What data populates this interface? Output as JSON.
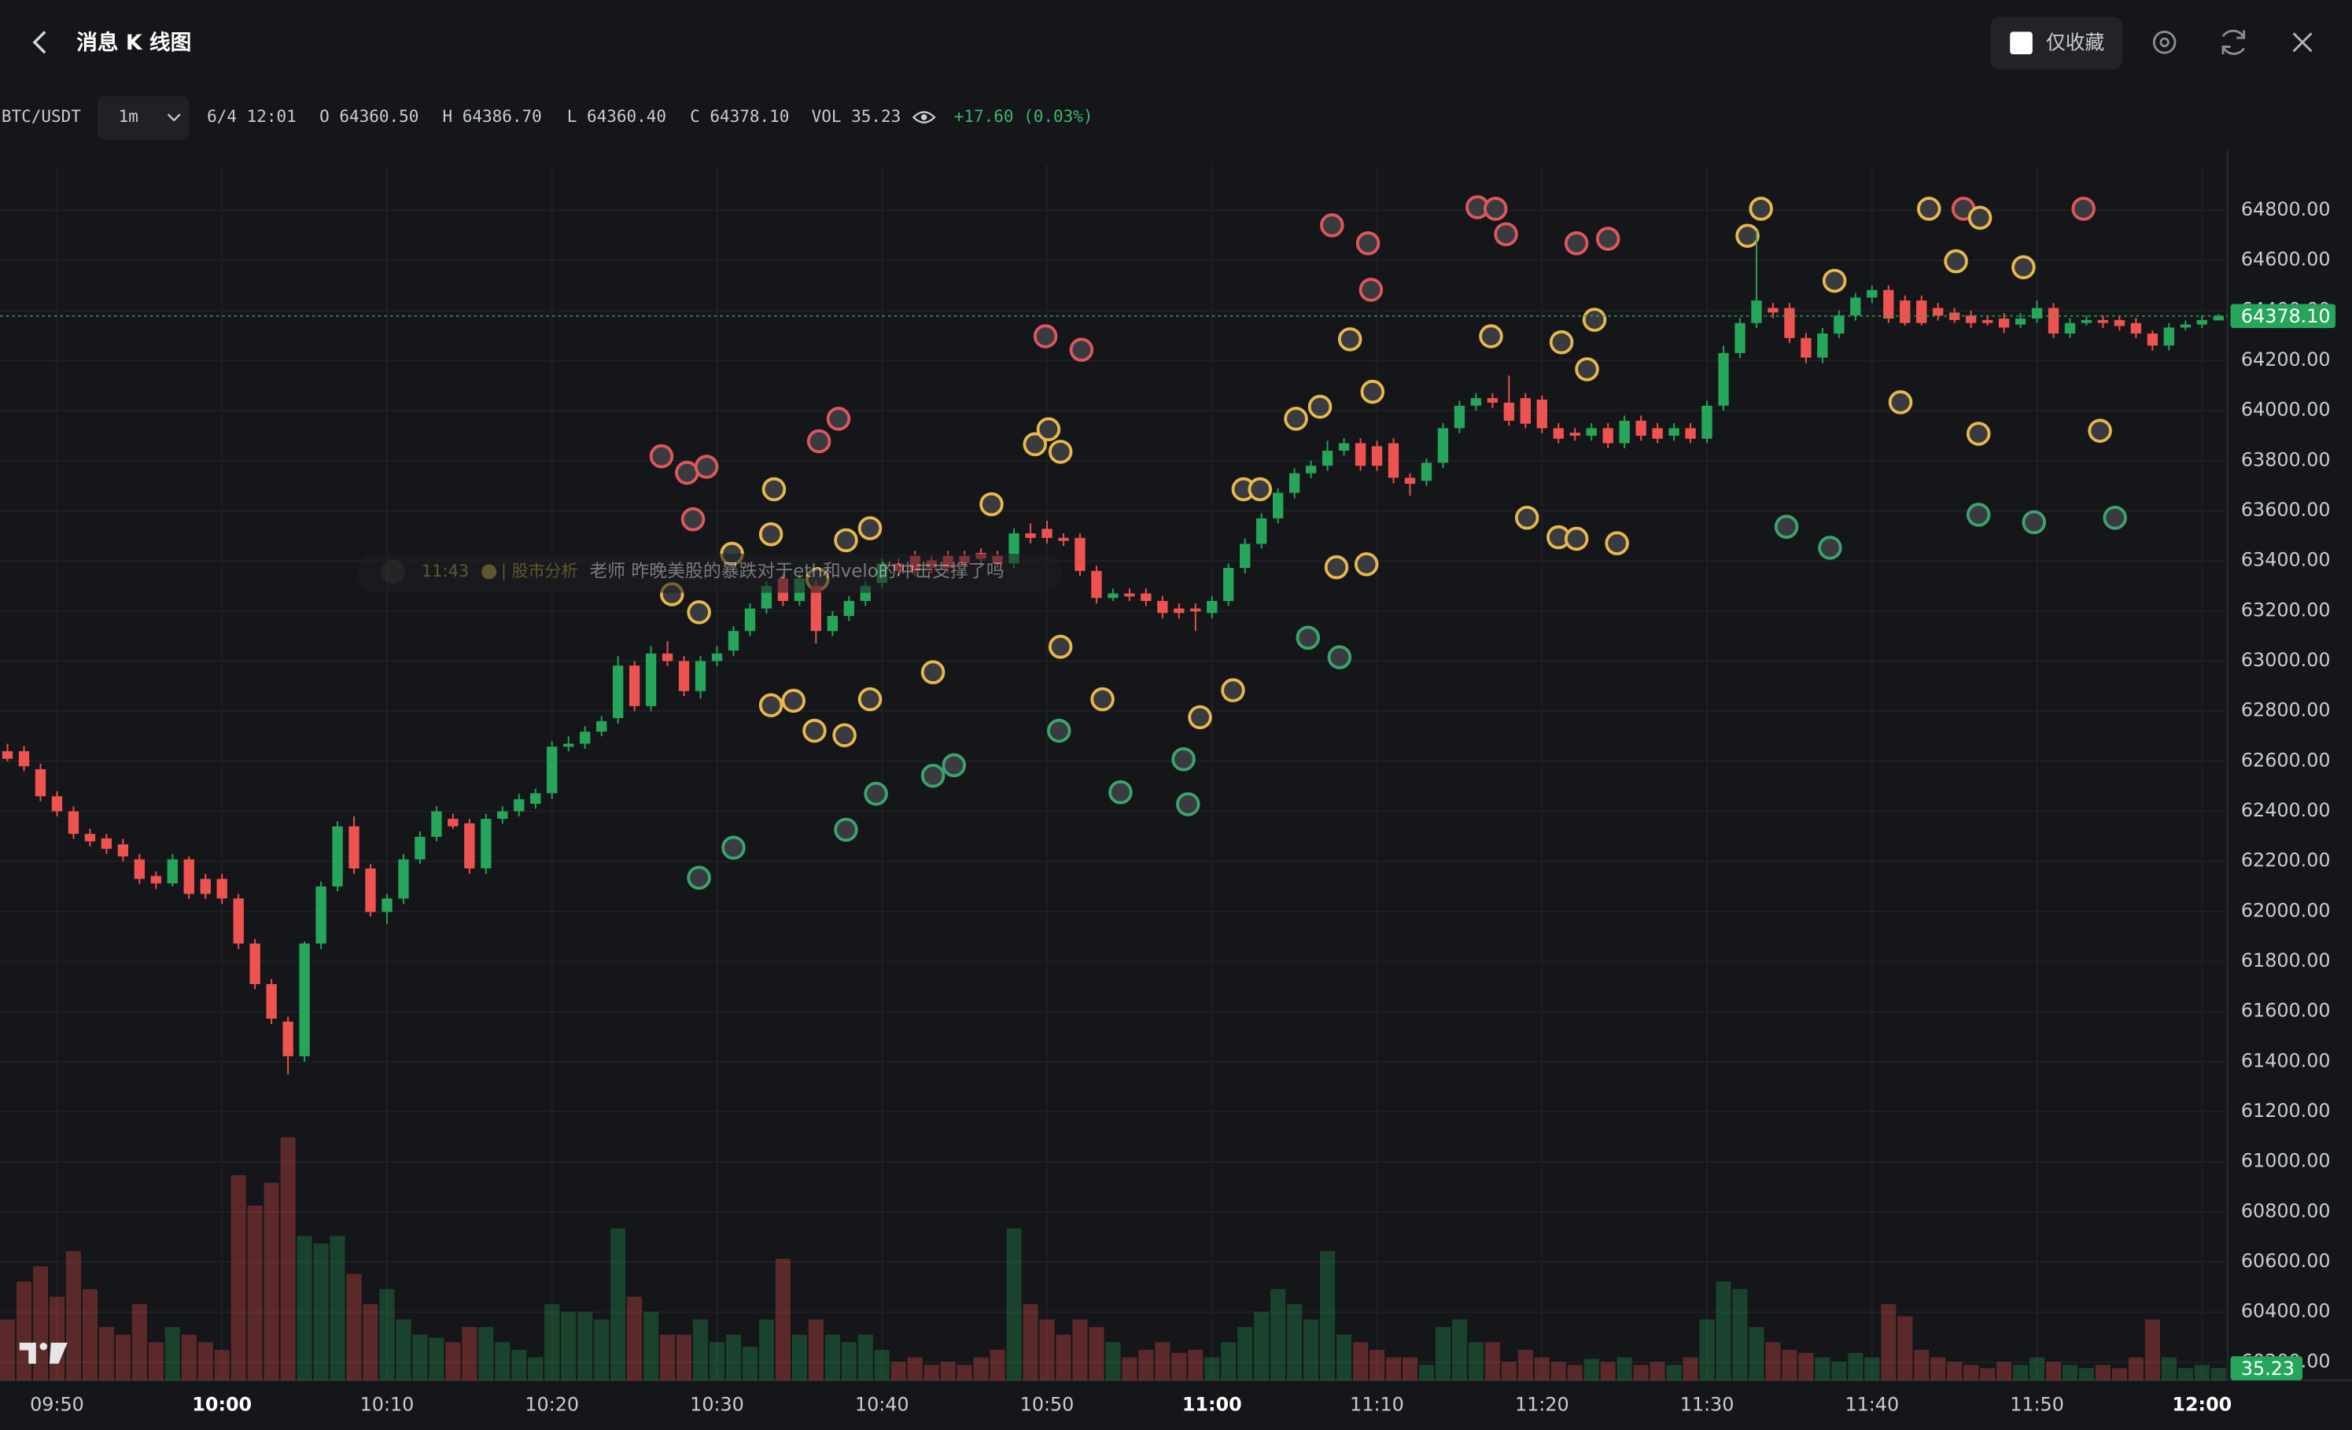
{
  "header": {
    "title": "消息 K 线图",
    "favorites_only": "仅收藏"
  },
  "toolbar": {
    "symbol": "BTC/USDT",
    "interval": "1m",
    "time": "6/4 12:01",
    "open": "O 64360.50",
    "high": "H 64386.70",
    "low": "L 64360.40",
    "close": "C 64378.10",
    "volume": "VOL 35.23",
    "change": "+17.60 (0.03%)"
  },
  "message": {
    "time": "11:43",
    "channel": "| 股市分析",
    "text": "老师 昨晚美股的暴跌对于eth和velo的冲击支撑了吗"
  },
  "chart_data": {
    "type": "candlestick",
    "up_color": "#26a65b",
    "down_color": "#ef5350",
    "categories": [
      null,
      null,
      null,
      "09:50",
      null,
      null,
      null,
      null,
      null,
      null,
      null,
      null,
      null,
      "10:00",
      null,
      null,
      null,
      null,
      null,
      null,
      null,
      null,
      null,
      "10:10",
      null,
      null,
      null,
      null,
      null,
      null,
      null,
      null,
      null,
      "10:20",
      null,
      null,
      null,
      null,
      null,
      null,
      null,
      null,
      null,
      "10:30",
      null,
      null,
      null,
      null,
      null,
      null,
      null,
      null,
      null,
      "10:40",
      null,
      null,
      null,
      null,
      null,
      null,
      null,
      null,
      null,
      "10:50",
      null,
      null,
      null,
      null,
      null,
      null,
      null,
      null,
      null,
      "11:00",
      null,
      null,
      null,
      null,
      null,
      null,
      null,
      null,
      null,
      "11:10",
      null,
      null,
      null,
      null,
      null,
      null,
      null,
      null,
      null,
      "11:20",
      null,
      null,
      null,
      null,
      null,
      null,
      null,
      null,
      null,
      "11:30",
      null,
      null,
      null,
      null,
      null,
      null,
      null,
      null,
      null,
      "11:40",
      null,
      null,
      null,
      null,
      null,
      null,
      null,
      null,
      null,
      "11:50",
      null,
      null,
      null,
      null,
      null,
      null,
      null,
      null,
      null,
      "12:00",
      null
    ],
    "candles": [
      [
        62640,
        62670,
        62600,
        62610
      ],
      [
        62640,
        62660,
        62560,
        62580
      ],
      [
        62568,
        62590,
        62440,
        62460
      ],
      [
        62460,
        62480,
        62380,
        62400
      ],
      [
        62400,
        62420,
        62290,
        62310
      ],
      [
        62310,
        62330,
        62260,
        62280
      ],
      [
        62292,
        62310,
        62230,
        62250
      ],
      [
        62268,
        62290,
        62200,
        62220
      ],
      [
        62208,
        62230,
        62110,
        62130
      ],
      [
        62142,
        62160,
        62090,
        62112
      ],
      [
        62112,
        62230,
        62100,
        62208
      ],
      [
        62208,
        62220,
        62050,
        62070
      ],
      [
        62130,
        62150,
        62050,
        62070
      ],
      [
        62130,
        62150,
        62030,
        62052
      ],
      [
        62052,
        62070,
        61850,
        61872
      ],
      [
        61872,
        61890,
        61690,
        61710
      ],
      [
        61710,
        61730,
        61550,
        61572
      ],
      [
        61560,
        61580,
        61350,
        61422
      ],
      [
        61422,
        61880,
        61400,
        61872
      ],
      [
        61872,
        62120,
        61850,
        62100
      ],
      [
        62100,
        62360,
        62080,
        62340
      ],
      [
        62340,
        62380,
        62150,
        62172
      ],
      [
        62172,
        62190,
        61980,
        61998
      ],
      [
        61998,
        62070,
        61950,
        62052
      ],
      [
        62052,
        62230,
        62030,
        62208
      ],
      [
        62208,
        62320,
        62190,
        62298
      ],
      [
        62298,
        62420,
        62280,
        62400
      ],
      [
        62370,
        62390,
        62330,
        62340
      ],
      [
        62352,
        62370,
        62150,
        62172
      ],
      [
        62172,
        62390,
        62150,
        62370
      ],
      [
        62370,
        62420,
        62350,
        62400
      ],
      [
        62400,
        62470,
        62380,
        62448
      ],
      [
        62430,
        62490,
        62410,
        62472
      ],
      [
        62472,
        62680,
        62450,
        62658
      ],
      [
        62658,
        62700,
        62640,
        62670
      ],
      [
        62670,
        62740,
        62650,
        62718
      ],
      [
        62718,
        62780,
        62700,
        62760
      ],
      [
        62772,
        63020,
        62750,
        62982
      ],
      [
        62982,
        63000,
        62800,
        62820
      ],
      [
        62820,
        63060,
        62800,
        63030
      ],
      [
        63030,
        63080,
        62980,
        63000
      ],
      [
        63000,
        63020,
        62860,
        62880
      ],
      [
        62880,
        63020,
        62850,
        63000
      ],
      [
        63000,
        63060,
        62980,
        63030
      ],
      [
        63042,
        63140,
        63020,
        63120
      ],
      [
        63120,
        63230,
        63100,
        63210
      ],
      [
        63210,
        63320,
        63190,
        63300
      ],
      [
        63330,
        63350,
        63220,
        63240
      ],
      [
        63240,
        63350,
        63220,
        63330
      ],
      [
        63300,
        63320,
        63070,
        63120
      ],
      [
        63120,
        63200,
        63100,
        63180
      ],
      [
        63180,
        63260,
        63160,
        63240
      ],
      [
        63240,
        63320,
        63220,
        63300
      ],
      [
        63312,
        63410,
        63290,
        63390
      ],
      [
        63390,
        63410,
        63340,
        63360
      ],
      [
        63420,
        63440,
        63340,
        63360
      ],
      [
        63402,
        63420,
        63350,
        63372
      ],
      [
        63420,
        63440,
        63350,
        63372
      ],
      [
        63420,
        63440,
        63380,
        63390
      ],
      [
        63432,
        63450,
        63390,
        63408
      ],
      [
        63420,
        63440,
        63370,
        63390
      ],
      [
        63390,
        63530,
        63370,
        63510
      ],
      [
        63510,
        63550,
        63470,
        63492
      ],
      [
        63528,
        63560,
        63470,
        63492
      ],
      [
        63492,
        63510,
        63460,
        63480
      ],
      [
        63492,
        63510,
        63340,
        63360
      ],
      [
        63360,
        63380,
        63230,
        63252
      ],
      [
        63252,
        63290,
        63240,
        63270
      ],
      [
        63270,
        63290,
        63240,
        63258
      ],
      [
        63270,
        63290,
        63220,
        63240
      ],
      [
        63240,
        63260,
        63170,
        63192
      ],
      [
        63210,
        63230,
        63170,
        63192
      ],
      [
        63210,
        63230,
        63120,
        63198
      ],
      [
        63192,
        63260,
        63170,
        63240
      ],
      [
        63240,
        63390,
        63220,
        63372
      ],
      [
        63372,
        63490,
        63350,
        63468
      ],
      [
        63468,
        63590,
        63450,
        63570
      ],
      [
        63570,
        63690,
        63550,
        63672
      ],
      [
        63672,
        63770,
        63650,
        63750
      ],
      [
        63750,
        63800,
        63730,
        63780
      ],
      [
        63780,
        63880,
        63760,
        63840
      ],
      [
        63840,
        63890,
        63820,
        63870
      ],
      [
        63870,
        63890,
        63760,
        63780
      ],
      [
        63858,
        63880,
        63760,
        63780
      ],
      [
        63870,
        63890,
        63710,
        63732
      ],
      [
        63732,
        63750,
        63660,
        63708
      ],
      [
        63720,
        63810,
        63700,
        63792
      ],
      [
        63792,
        63950,
        63770,
        63930
      ],
      [
        63930,
        64040,
        63910,
        64020
      ],
      [
        64020,
        64070,
        64000,
        64050
      ],
      [
        64050,
        64070,
        64010,
        64032
      ],
      [
        64032,
        64140,
        63940,
        63960
      ],
      [
        64050,
        64070,
        63930,
        63948
      ],
      [
        64044,
        64060,
        63910,
        63930
      ],
      [
        63930,
        63950,
        63870,
        63888
      ],
      [
        63912,
        63930,
        63880,
        63900
      ],
      [
        63900,
        63950,
        63880,
        63930
      ],
      [
        63930,
        63950,
        63850,
        63870
      ],
      [
        63870,
        63980,
        63850,
        63960
      ],
      [
        63960,
        63980,
        63880,
        63900
      ],
      [
        63930,
        63950,
        63870,
        63888
      ],
      [
        63900,
        63950,
        63880,
        63930
      ],
      [
        63930,
        63950,
        63870,
        63888
      ],
      [
        63888,
        64040,
        63870,
        64020
      ],
      [
        64020,
        64260,
        64000,
        64230
      ],
      [
        64230,
        64370,
        64210,
        64350
      ],
      [
        64350,
        64720,
        64330,
        64440
      ],
      [
        64410,
        64430,
        64370,
        64392
      ],
      [
        64410,
        64430,
        64270,
        64290
      ],
      [
        64290,
        64310,
        64190,
        64212
      ],
      [
        64212,
        64330,
        64190,
        64308
      ],
      [
        64308,
        64400,
        64290,
        64380
      ],
      [
        64380,
        64470,
        64360,
        64452
      ],
      [
        64452,
        64500,
        64430,
        64482
      ],
      [
        64482,
        64500,
        64350,
        64368
      ],
      [
        64440,
        64460,
        64340,
        64350
      ],
      [
        64440,
        64460,
        64340,
        64350
      ],
      [
        64410,
        64430,
        64360,
        64380
      ],
      [
        64392,
        64410,
        64350,
        64362
      ],
      [
        64380,
        64400,
        64330,
        64350
      ],
      [
        64362,
        64380,
        64340,
        64350
      ],
      [
        64368,
        64390,
        64310,
        64332
      ],
      [
        64344,
        64390,
        64330,
        64368
      ],
      [
        64368,
        64440,
        64350,
        64410
      ],
      [
        64410,
        64430,
        64290,
        64308
      ],
      [
        64308,
        64370,
        64290,
        64350
      ],
      [
        64350,
        64380,
        64340,
        64362
      ],
      [
        64362,
        64380,
        64330,
        64350
      ],
      [
        64362,
        64380,
        64320,
        64338
      ],
      [
        64350,
        64370,
        64290,
        64308
      ],
      [
        64308,
        64320,
        64240,
        64260
      ],
      [
        64260,
        64350,
        64240,
        64332
      ],
      [
        64332,
        64360,
        64320,
        64344
      ],
      [
        64344,
        64380,
        64330,
        64362
      ],
      [
        64360.5,
        64386.7,
        64360.4,
        64378.1
      ]
    ],
    "volumes": [
      176,
      286,
      330,
      242,
      374,
      264,
      154,
      132,
      220,
      110,
      154,
      132,
      110,
      88,
      594,
      506,
      572,
      704,
      418,
      396,
      418,
      308,
      220,
      264,
      176,
      132,
      123,
      110,
      154,
      154,
      110,
      88,
      66,
      220,
      198,
      198,
      176,
      440,
      242,
      198,
      132,
      132,
      176,
      110,
      132,
      97,
      176,
      352,
      132,
      176,
      132,
      110,
      132,
      88,
      53,
      66,
      44,
      53,
      44,
      66,
      88,
      440,
      220,
      176,
      132,
      176,
      154,
      110,
      66,
      88,
      110,
      79,
      88,
      66,
      110,
      154,
      198,
      264,
      220,
      176,
      374,
      132,
      110,
      88,
      66,
      66,
      44,
      154,
      176,
      110,
      110,
      53,
      88,
      66,
      53,
      44,
      62,
      53,
      66,
      44,
      53,
      44,
      66,
      176,
      286,
      264,
      154,
      110,
      88,
      79,
      66,
      53,
      79,
      66,
      220,
      185,
      88,
      66,
      53,
      44,
      35,
      53,
      44,
      66,
      53,
      44,
      35,
      44,
      35,
      66,
      176,
      66,
      35,
      44,
      35.23
    ],
    "last_price_label": "64378.10",
    "ylim": [
      60128,
      64980
    ],
    "yticks": [
      {
        "value": 60200,
        "label": "60200.00"
      },
      {
        "value": 60400,
        "label": "60400.00"
      },
      {
        "value": 60600,
        "label": "60600.00"
      },
      {
        "value": 60800,
        "label": "60800.00"
      },
      {
        "value": 61000,
        "label": "61000.00"
      },
      {
        "value": 61200,
        "label": "61200.00"
      },
      {
        "value": 61400,
        "label": "61400.00"
      },
      {
        "value": 61600,
        "label": "61600.00"
      },
      {
        "value": 61800,
        "label": "61800.00"
      },
      {
        "value": 62000,
        "label": "62000.00"
      },
      {
        "value": 62200,
        "label": "62200.00"
      },
      {
        "value": 62400,
        "label": "62400.00"
      },
      {
        "value": 62600,
        "label": "62600.00"
      },
      {
        "value": 62800,
        "label": "62800.00"
      },
      {
        "value": 63000,
        "label": "63000.00"
      },
      {
        "value": 63200,
        "label": "63200.00"
      },
      {
        "value": 63400,
        "label": "63400.00"
      },
      {
        "value": 63600,
        "label": "63600.00"
      },
      {
        "value": 63800,
        "label": "63800.00"
      },
      {
        "value": 64000,
        "label": "64000.00"
      },
      {
        "value": 64200,
        "label": "64200.00"
      },
      {
        "value": 64400,
        "label": "64400.00"
      },
      {
        "value": 64600,
        "label": "64600.00"
      },
      {
        "value": 64800,
        "label": "64800.00"
      }
    ],
    "grid": true
  }
}
